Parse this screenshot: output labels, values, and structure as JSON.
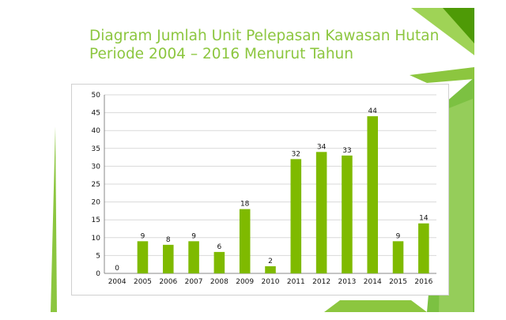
{
  "slide": {
    "title_line1": "Diagram Jumlah Unit Pelepasan Kawasan Hutan",
    "title_line2": "Periode 2004 – 2016 Menurut Tahun",
    "accent_color": "#8cc63f",
    "dark_green": "#4e9a06"
  },
  "chart_data": {
    "type": "bar",
    "title": "Diagram Jumlah Unit Pelepasan Kawasan Hutan Periode 2004 – 2016 Menurut Tahun",
    "categories": [
      "2004",
      "2005",
      "2006",
      "2007",
      "2008",
      "2009",
      "2010",
      "2011",
      "2012",
      "2013",
      "2014",
      "2015",
      "2016"
    ],
    "values": [
      0,
      9,
      8,
      9,
      6,
      18,
      2,
      32,
      34,
      33,
      44,
      9,
      14
    ],
    "data_labels": [
      "0",
      "9",
      "8",
      "9",
      "6",
      "18",
      "2",
      "32",
      "34",
      "33",
      "44",
      "9",
      "14"
    ],
    "yticks": [
      "0",
      "5",
      "10",
      "15",
      "20",
      "25",
      "30",
      "35",
      "40",
      "45",
      "50"
    ],
    "ylim": [
      0,
      50
    ],
    "xlabel": "",
    "ylabel": "",
    "grid": true,
    "legend": "none",
    "bar_color": "#7fba00"
  }
}
